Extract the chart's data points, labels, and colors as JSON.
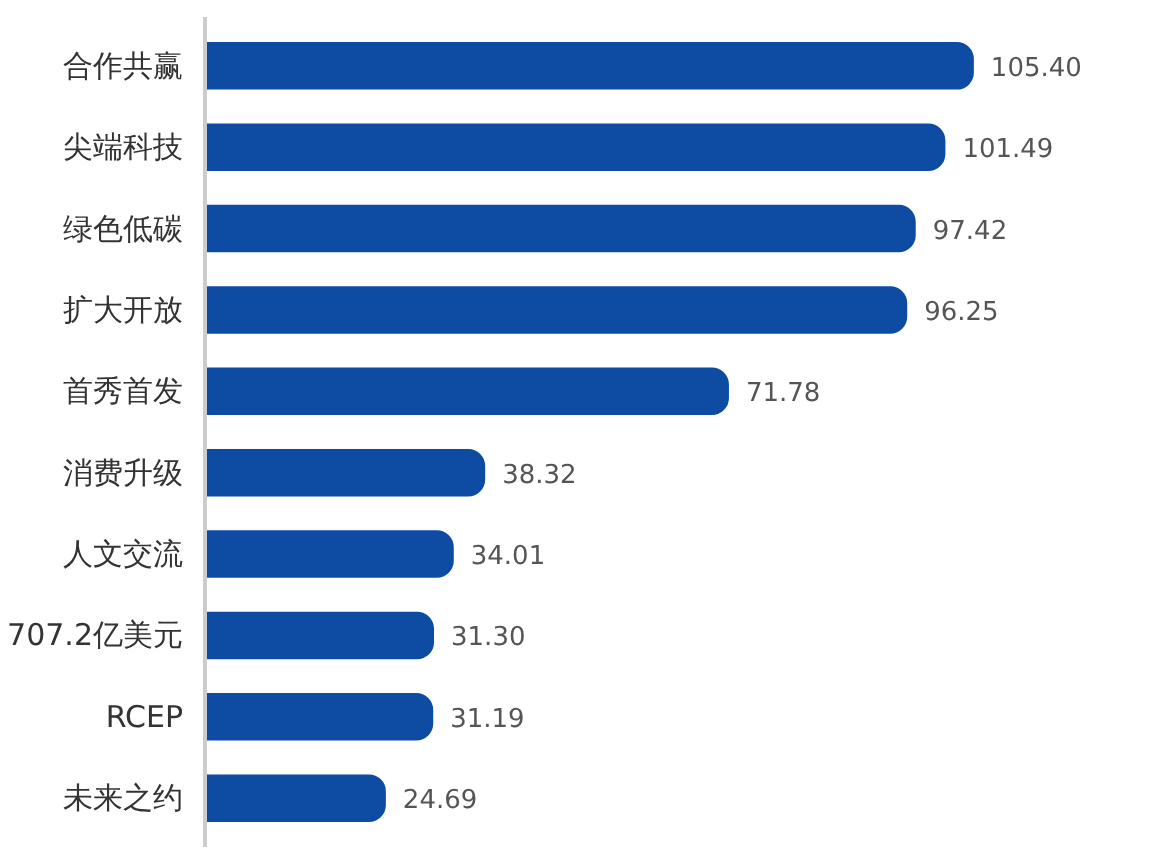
{
  "chart_data": {
    "type": "bar",
    "orientation": "horizontal",
    "categories": [
      "合作共赢",
      "尖端科技",
      "绿色低碳",
      "扩大开放",
      "首秀首发",
      "消费升级",
      "人文交流",
      "707.2亿美元",
      "RCEP",
      "未来之约"
    ],
    "values": [
      105.4,
      101.49,
      97.42,
      96.25,
      71.78,
      38.32,
      34.01,
      31.3,
      31.19,
      24.69
    ],
    "value_labels": [
      "105.40",
      "101.49",
      "97.42",
      "96.25",
      "71.78",
      "38.32",
      "34.01",
      "31.30",
      "31.19",
      "24.69"
    ],
    "color": "#0e4ba3",
    "grid": false
  }
}
